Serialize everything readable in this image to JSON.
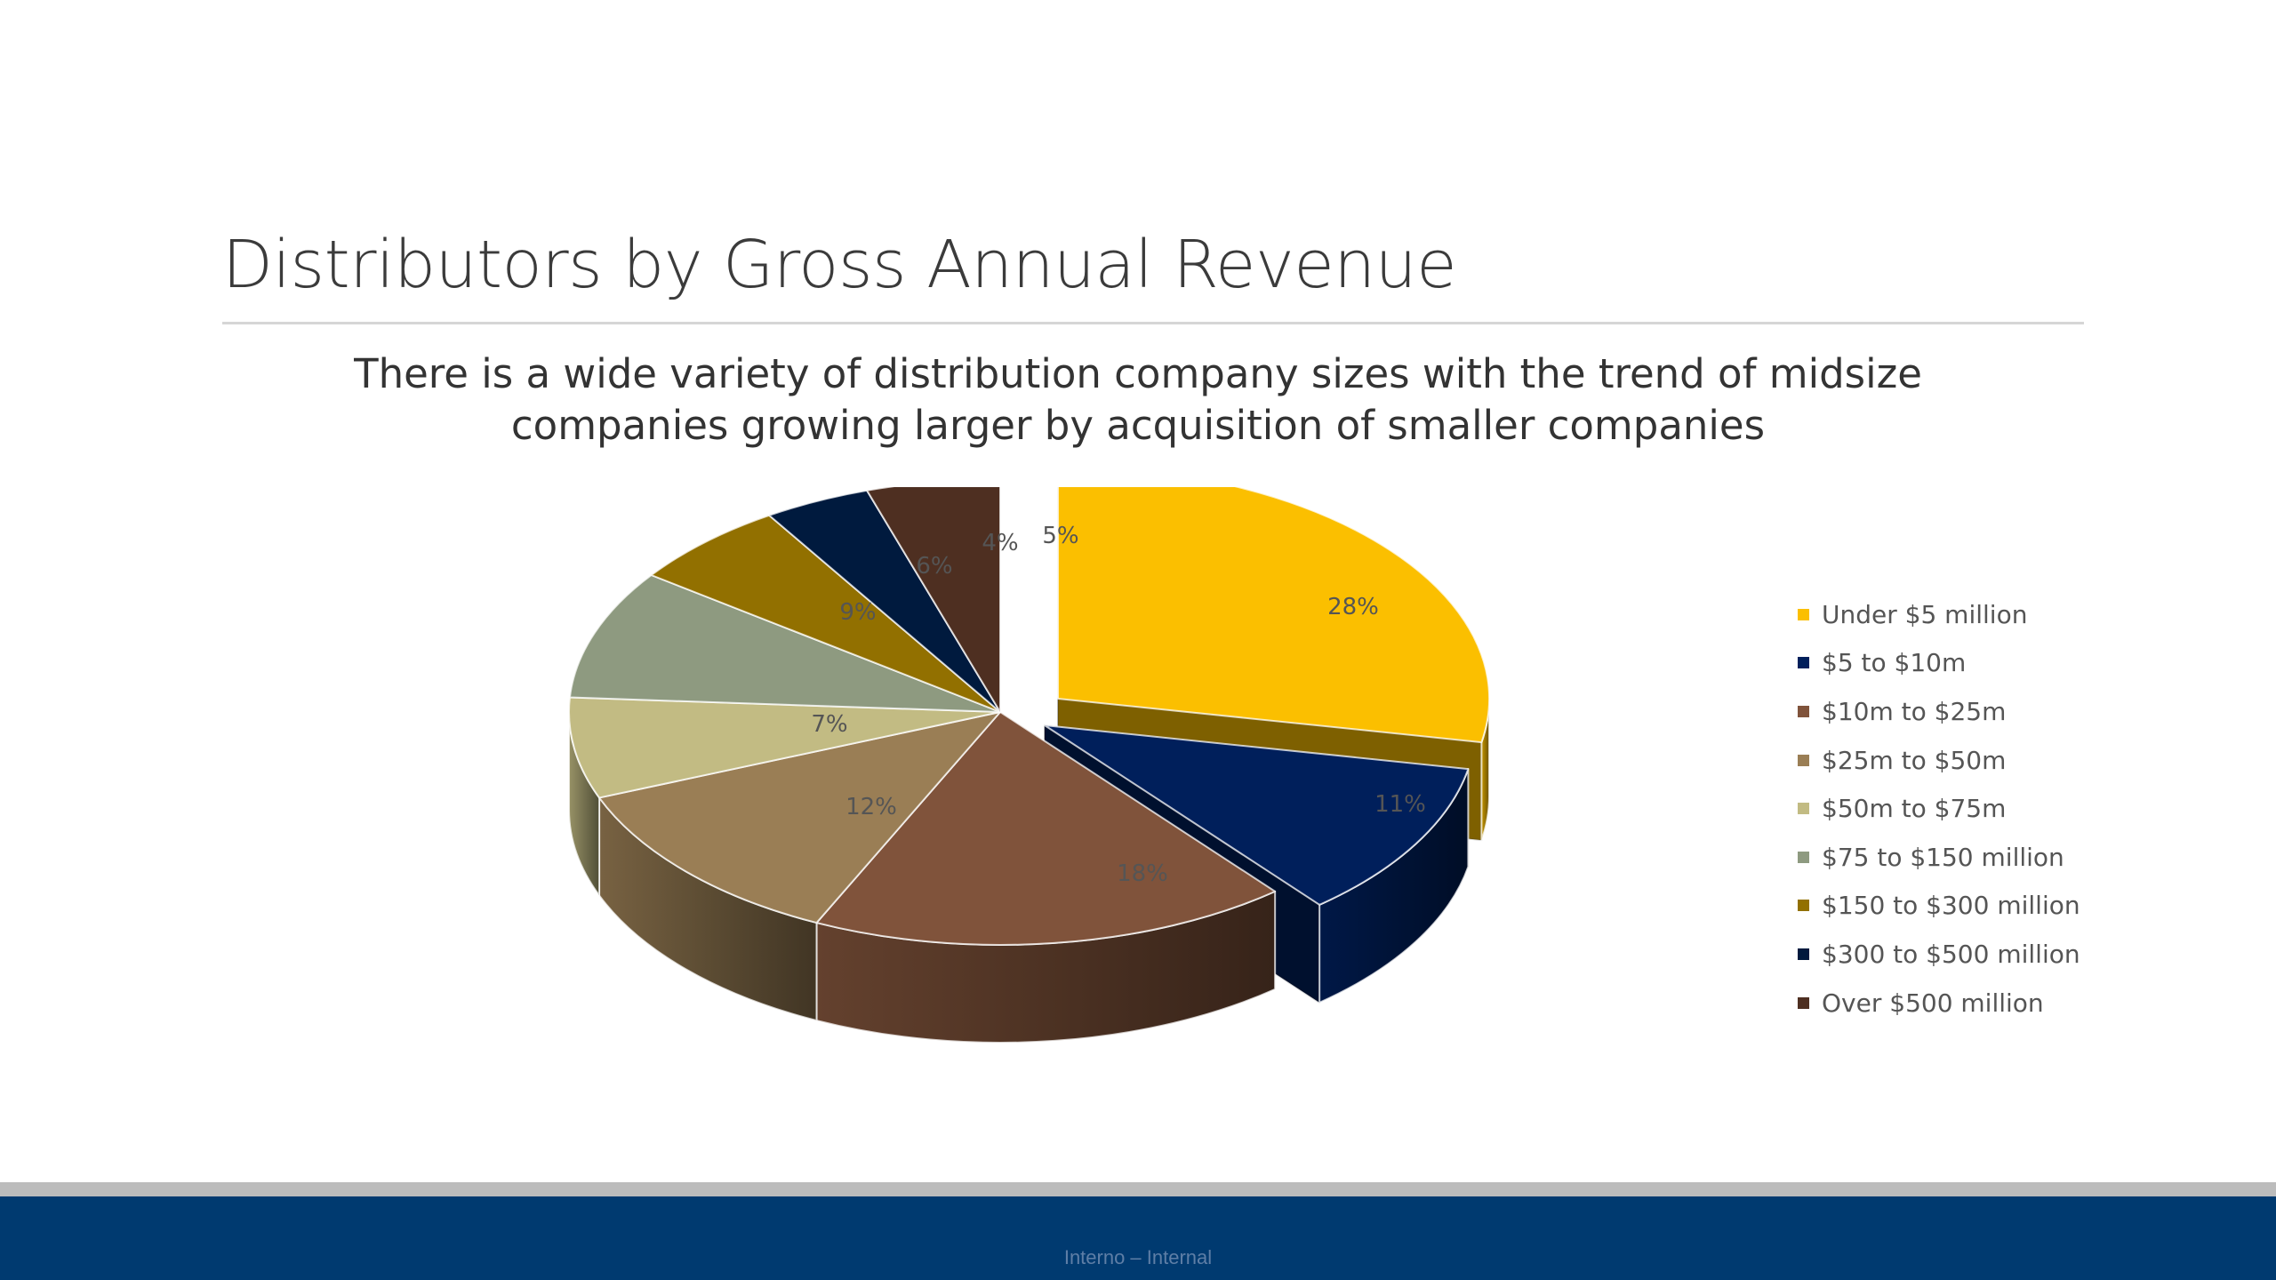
{
  "slide": {
    "title": "Distributors by Gross Annual Revenue",
    "subtitle_line1": "There is a wide variety of distribution company sizes with the trend of midsize",
    "subtitle_line2": "companies growing larger by acquisition of smaller companies",
    "footer": "Interno – Internal"
  },
  "chart_data": {
    "type": "pie",
    "style": "3d-exploded",
    "title": "",
    "legend_position": "right",
    "categories": [
      "Under $5 million",
      "$5 to $10m",
      "$10m to $25m",
      "$25m to $50m",
      "$50m to $75m",
      "$75 to $150 million",
      "$150 to $300 million",
      "$300 to $500 million",
      "Over $500 million"
    ],
    "values": [
      28,
      11,
      18,
      12,
      7,
      9,
      6,
      4,
      5
    ],
    "labels": [
      "28%",
      "11%",
      "18%",
      "12%",
      "7%",
      "9%",
      "6%",
      "4%",
      "5%"
    ],
    "colors": [
      "#fbbf00",
      "#001f5b",
      "#80533b",
      "#9a7e55",
      "#c2bb83",
      "#8e9a80",
      "#927000",
      "#001a3e",
      "#4e2f21"
    ],
    "exploded": [
      "Under $5 million",
      "$5 to $10m"
    ]
  }
}
